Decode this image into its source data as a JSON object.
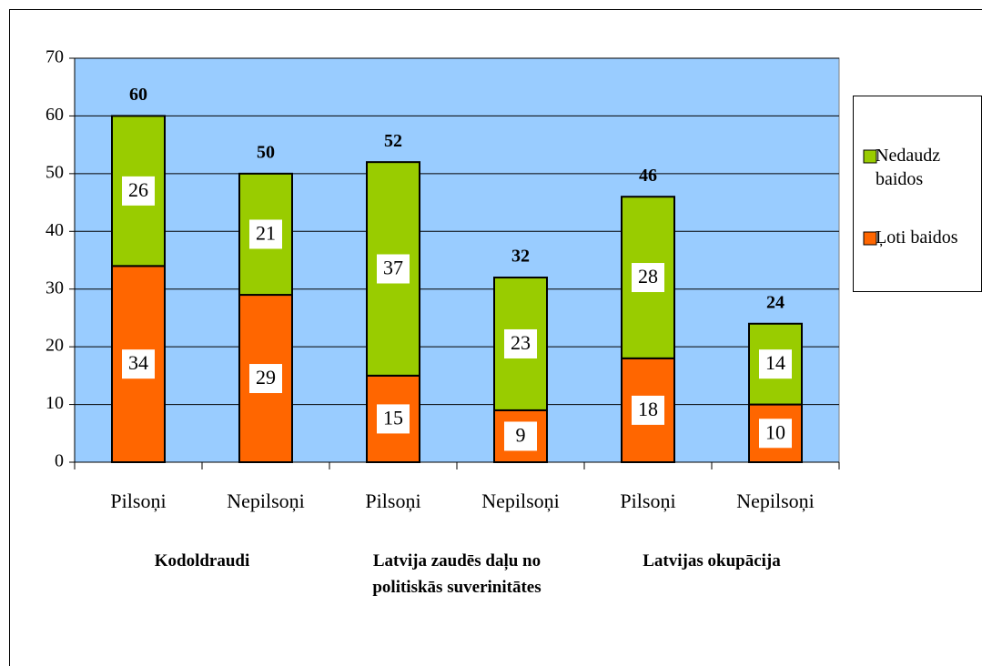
{
  "chart_data": {
    "type": "stacked_bar",
    "categories": [
      "Pilsoņi",
      "Nepilsoņi",
      "Pilsoņi",
      "Nepilsoņi",
      "Pilsoņi",
      "Nepilsoņi"
    ],
    "groups": [
      "Kodoldraudi",
      "Latvija zaudēs daļu no politiskās suverinitātes",
      "Latvijas okupācija"
    ],
    "series": [
      {
        "name": "Ļoti baidos",
        "color": "#ff6600",
        "values": [
          34,
          29,
          15,
          9,
          18,
          10
        ]
      },
      {
        "name": "Nedaudz baidos",
        "color": "#99cc00",
        "values": [
          26,
          21,
          37,
          23,
          28,
          14
        ]
      }
    ],
    "totals": [
      60,
      50,
      52,
      32,
      46,
      24
    ],
    "ylim": [
      0,
      70
    ],
    "yticks": [
      0,
      10,
      20,
      30,
      40,
      50,
      60,
      70
    ],
    "grid": true,
    "legend": "right",
    "background": "#99ccff"
  }
}
